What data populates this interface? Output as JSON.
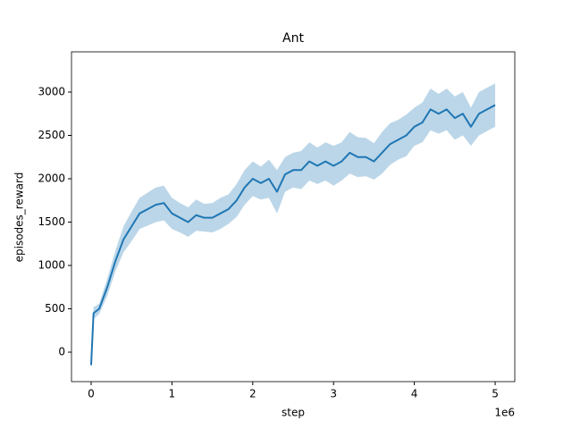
{
  "chart_data": {
    "type": "line",
    "title": "Ant",
    "x_label": "step",
    "y_label": "episodes_reward",
    "x_offset_label": "1e6",
    "xlim": [
      -243000,
      5243000
    ],
    "ylim": [
      -340,
      3464
    ],
    "xticks": [
      0,
      {
        "value": 1000000,
        "label": "1"
      },
      {
        "value": 2000000,
        "label": "2"
      },
      {
        "value": 3000000,
        "label": "3"
      },
      {
        "value": 4000000,
        "label": "4"
      },
      {
        "value": 5000000,
        "label": "5"
      }
    ],
    "yticks": [
      0,
      500,
      1000,
      1500,
      2000,
      2500,
      3000
    ],
    "x": [
      0,
      30000,
      100000,
      200000,
      300000,
      400000,
      500000,
      600000,
      700000,
      800000,
      900000,
      1000000,
      1100000,
      1200000,
      1300000,
      1400000,
      1500000,
      1600000,
      1700000,
      1800000,
      1900000,
      2000000,
      2100000,
      2200000,
      2300000,
      2400000,
      2500000,
      2600000,
      2700000,
      2800000,
      2900000,
      3000000,
      3100000,
      3200000,
      3300000,
      3400000,
      3500000,
      3600000,
      3700000,
      3800000,
      3900000,
      4000000,
      4100000,
      4200000,
      4300000,
      4400000,
      4500000,
      4600000,
      4700000,
      4800000,
      4900000,
      5000000
    ],
    "series": [
      {
        "name": "Ant",
        "color": "#1f77b4",
        "values": [
          -150,
          450,
          500,
          750,
          1050,
          1300,
          1450,
          1600,
          1650,
          1700,
          1720,
          1600,
          1550,
          1500,
          1580,
          1550,
          1550,
          1600,
          1650,
          1750,
          1900,
          2000,
          1950,
          2000,
          1850,
          2050,
          2100,
          2100,
          2200,
          2150,
          2200,
          2150,
          2200,
          2300,
          2250,
          2250,
          2200,
          2300,
          2400,
          2450,
          2500,
          2600,
          2650,
          2800,
          2750,
          2800,
          2700,
          2750,
          2600,
          2750,
          2800,
          2850
        ],
        "lower": [
          -170,
          380,
          440,
          650,
          930,
          1150,
          1280,
          1420,
          1460,
          1500,
          1520,
          1420,
          1380,
          1330,
          1400,
          1390,
          1380,
          1420,
          1480,
          1560,
          1700,
          1800,
          1760,
          1780,
          1600,
          1850,
          1900,
          1880,
          1980,
          1940,
          1980,
          1920,
          1980,
          2060,
          2020,
          2030,
          1990,
          2060,
          2160,
          2220,
          2260,
          2380,
          2420,
          2560,
          2520,
          2560,
          2450,
          2500,
          2380,
          2500,
          2550,
          2600
        ],
        "upper": [
          -130,
          520,
          560,
          850,
          1170,
          1450,
          1620,
          1780,
          1840,
          1900,
          1920,
          1780,
          1720,
          1670,
          1760,
          1710,
          1720,
          1780,
          1820,
          1940,
          2100,
          2200,
          2140,
          2220,
          2100,
          2250,
          2300,
          2320,
          2420,
          2360,
          2420,
          2380,
          2420,
          2540,
          2480,
          2470,
          2410,
          2540,
          2640,
          2680,
          2740,
          2820,
          2880,
          3040,
          2980,
          3040,
          2950,
          3000,
          2820,
          3000,
          3050,
          3100
        ]
      }
    ]
  }
}
